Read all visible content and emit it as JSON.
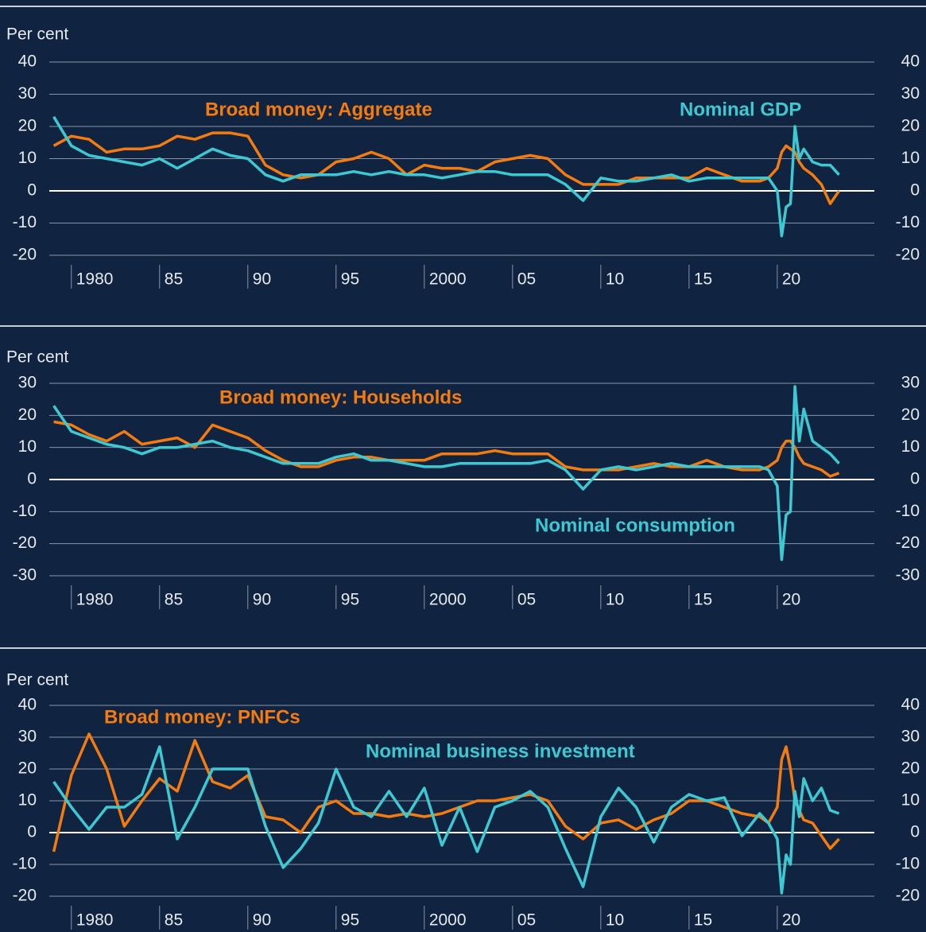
{
  "chart_data": [
    {
      "type": "line",
      "ylabel": "Per cent",
      "x": [
        1979,
        1980,
        1981,
        1982,
        1983,
        1984,
        1985,
        1986,
        1987,
        1988,
        1989,
        1990,
        1991,
        1992,
        1993,
        1994,
        1995,
        1996,
        1997,
        1998,
        1999,
        2000,
        2001,
        2002,
        2003,
        2004,
        2005,
        2006,
        2007,
        2008,
        2009,
        2010,
        2011,
        2012,
        2013,
        2014,
        2015,
        2016,
        2017,
        2018,
        2019,
        2019.5,
        2020,
        2020.25,
        2020.5,
        2020.75,
        2021,
        2021.25,
        2021.5,
        2022,
        2022.5,
        2023,
        2023.5
      ],
      "series": [
        {
          "name": "Broad money: Aggregate",
          "color": "#f47b0e",
          "values": [
            14,
            17,
            16,
            12,
            13,
            13,
            14,
            17,
            16,
            18,
            18,
            17,
            8,
            5,
            4,
            5,
            9,
            10,
            12,
            10,
            5,
            8,
            7,
            7,
            6,
            9,
            10,
            11,
            10,
            5,
            2,
            2,
            2,
            4,
            4,
            4,
            4,
            7,
            5,
            3,
            3,
            4,
            7,
            12,
            14,
            13,
            12,
            9,
            7,
            5,
            2,
            -4,
            0
          ]
        },
        {
          "name": "Nominal GDP",
          "color": "#3cc9d2",
          "values": [
            23,
            14,
            11,
            10,
            9,
            8,
            10,
            7,
            10,
            13,
            11,
            10,
            5,
            3,
            5,
            5,
            5,
            6,
            5,
            6,
            5,
            5,
            4,
            5,
            6,
            6,
            5,
            5,
            5,
            2,
            -3,
            4,
            3,
            3,
            4,
            5,
            3,
            4,
            4,
            4,
            4,
            4,
            0,
            -14,
            -5,
            -4,
            20,
            10,
            13,
            9,
            8,
            8,
            5
          ]
        }
      ],
      "xlim": [
        1978.75,
        2025.5
      ],
      "xticks": [
        {
          "value": 1980,
          "label": "1980"
        },
        {
          "value": 1985,
          "label": "85"
        },
        {
          "value": 1990,
          "label": "90"
        },
        {
          "value": 1995,
          "label": "95"
        },
        {
          "value": 2000,
          "label": "2000"
        },
        {
          "value": 2005,
          "label": "05"
        },
        {
          "value": 2010,
          "label": "10"
        },
        {
          "value": 2015,
          "label": "15"
        },
        {
          "value": 2020,
          "label": "20"
        }
      ],
      "ylim": [
        -20,
        40
      ],
      "yticks": [
        -20,
        -10,
        0,
        10,
        20,
        30,
        40
      ],
      "grid": true
    },
    {
      "type": "line",
      "ylabel": "Per cent",
      "x": [
        1979,
        1980,
        1981,
        1982,
        1983,
        1984,
        1985,
        1986,
        1987,
        1988,
        1989,
        1990,
        1991,
        1992,
        1993,
        1994,
        1995,
        1996,
        1997,
        1998,
        1999,
        2000,
        2001,
        2002,
        2003,
        2004,
        2005,
        2006,
        2007,
        2008,
        2009,
        2010,
        2011,
        2012,
        2013,
        2014,
        2015,
        2016,
        2017,
        2018,
        2019,
        2019.5,
        2020,
        2020.25,
        2020.5,
        2020.75,
        2021,
        2021.25,
        2021.5,
        2022,
        2022.5,
        2023,
        2023.5
      ],
      "series": [
        {
          "name": "Broad money: Households",
          "color": "#f47b0e",
          "values": [
            18,
            17,
            14,
            12,
            15,
            11,
            12,
            13,
            10,
            17,
            15,
            13,
            9,
            6,
            4,
            4,
            6,
            7,
            7,
            6,
            6,
            6,
            8,
            8,
            8,
            9,
            8,
            8,
            8,
            4,
            3,
            3,
            3,
            4,
            5,
            4,
            4,
            6,
            4,
            3,
            3,
            4,
            6,
            10,
            12,
            12,
            10,
            7,
            5,
            4,
            3,
            1,
            2
          ]
        },
        {
          "name": "Nominal consumption",
          "color": "#3cc9d2",
          "values": [
            23,
            15,
            13,
            11,
            10,
            8,
            10,
            10,
            11,
            12,
            10,
            9,
            7,
            5,
            5,
            5,
            7,
            8,
            6,
            6,
            5,
            4,
            4,
            5,
            5,
            5,
            5,
            5,
            6,
            3,
            -3,
            3,
            4,
            3,
            4,
            5,
            4,
            4,
            4,
            4,
            4,
            3,
            -2,
            -25,
            -11,
            -10,
            29,
            12,
            22,
            12,
            10,
            8,
            5
          ]
        }
      ],
      "xlim": [
        1978.75,
        2025.5
      ],
      "xticks": [
        {
          "value": 1980,
          "label": "1980"
        },
        {
          "value": 1985,
          "label": "85"
        },
        {
          "value": 1990,
          "label": "90"
        },
        {
          "value": 1995,
          "label": "95"
        },
        {
          "value": 2000,
          "label": "2000"
        },
        {
          "value": 2005,
          "label": "05"
        },
        {
          "value": 2010,
          "label": "10"
        },
        {
          "value": 2015,
          "label": "15"
        },
        {
          "value": 2020,
          "label": "20"
        }
      ],
      "ylim": [
        -30,
        30
      ],
      "yticks": [
        -30,
        -20,
        -10,
        0,
        10,
        20,
        30
      ],
      "grid": true
    },
    {
      "type": "line",
      "ylabel": "Per cent",
      "x": [
        1979,
        1980,
        1981,
        1982,
        1983,
        1984,
        1985,
        1986,
        1987,
        1988,
        1989,
        1990,
        1991,
        1992,
        1993,
        1994,
        1995,
        1996,
        1997,
        1998,
        1999,
        2000,
        2001,
        2002,
        2003,
        2004,
        2005,
        2006,
        2007,
        2008,
        2009,
        2010,
        2011,
        2012,
        2013,
        2014,
        2015,
        2016,
        2017,
        2018,
        2019,
        2019.5,
        2020,
        2020.25,
        2020.5,
        2020.75,
        2021,
        2021.25,
        2021.5,
        2022,
        2022.5,
        2023,
        2023.5
      ],
      "series": [
        {
          "name": "Broad money: PNFCs",
          "color": "#f47b0e",
          "values": [
            -6,
            18,
            31,
            20,
            2,
            10,
            17,
            13,
            29,
            16,
            14,
            18,
            5,
            4,
            0,
            8,
            10,
            6,
            6,
            5,
            6,
            5,
            6,
            8,
            10,
            10,
            11,
            12,
            10,
            2,
            -2,
            3,
            4,
            1,
            4,
            6,
            10,
            10,
            8,
            6,
            5,
            3,
            8,
            23,
            27,
            20,
            10,
            7,
            4,
            3,
            -1,
            -5,
            -2
          ]
        },
        {
          "name": "Nominal business investment",
          "color": "#3cc9d2",
          "values": [
            16,
            8,
            1,
            8,
            8,
            12,
            27,
            -2,
            8,
            20,
            20,
            20,
            2,
            -11,
            -5,
            3,
            20,
            8,
            5,
            13,
            5,
            14,
            -4,
            8,
            -6,
            8,
            10,
            13,
            8,
            -5,
            -17,
            5,
            14,
            8,
            -3,
            8,
            12,
            10,
            11,
            -1,
            6,
            3,
            -2,
            -19,
            -7,
            -10,
            13,
            5,
            17,
            10,
            14,
            7,
            6
          ]
        }
      ],
      "xlim": [
        1978.75,
        2025.5
      ],
      "xticks": [
        {
          "value": 1980,
          "label": "1980"
        },
        {
          "value": 1985,
          "label": "85"
        },
        {
          "value": 1990,
          "label": "90"
        },
        {
          "value": 1995,
          "label": "95"
        },
        {
          "value": 2000,
          "label": "2000"
        },
        {
          "value": 2005,
          "label": "05"
        },
        {
          "value": 2010,
          "label": "10"
        },
        {
          "value": 2015,
          "label": "15"
        },
        {
          "value": 2020,
          "label": "20"
        }
      ],
      "ylim": [
        -20,
        40
      ],
      "yticks": [
        -20,
        -10,
        0,
        10,
        20,
        30,
        40
      ],
      "grid": true
    }
  ]
}
